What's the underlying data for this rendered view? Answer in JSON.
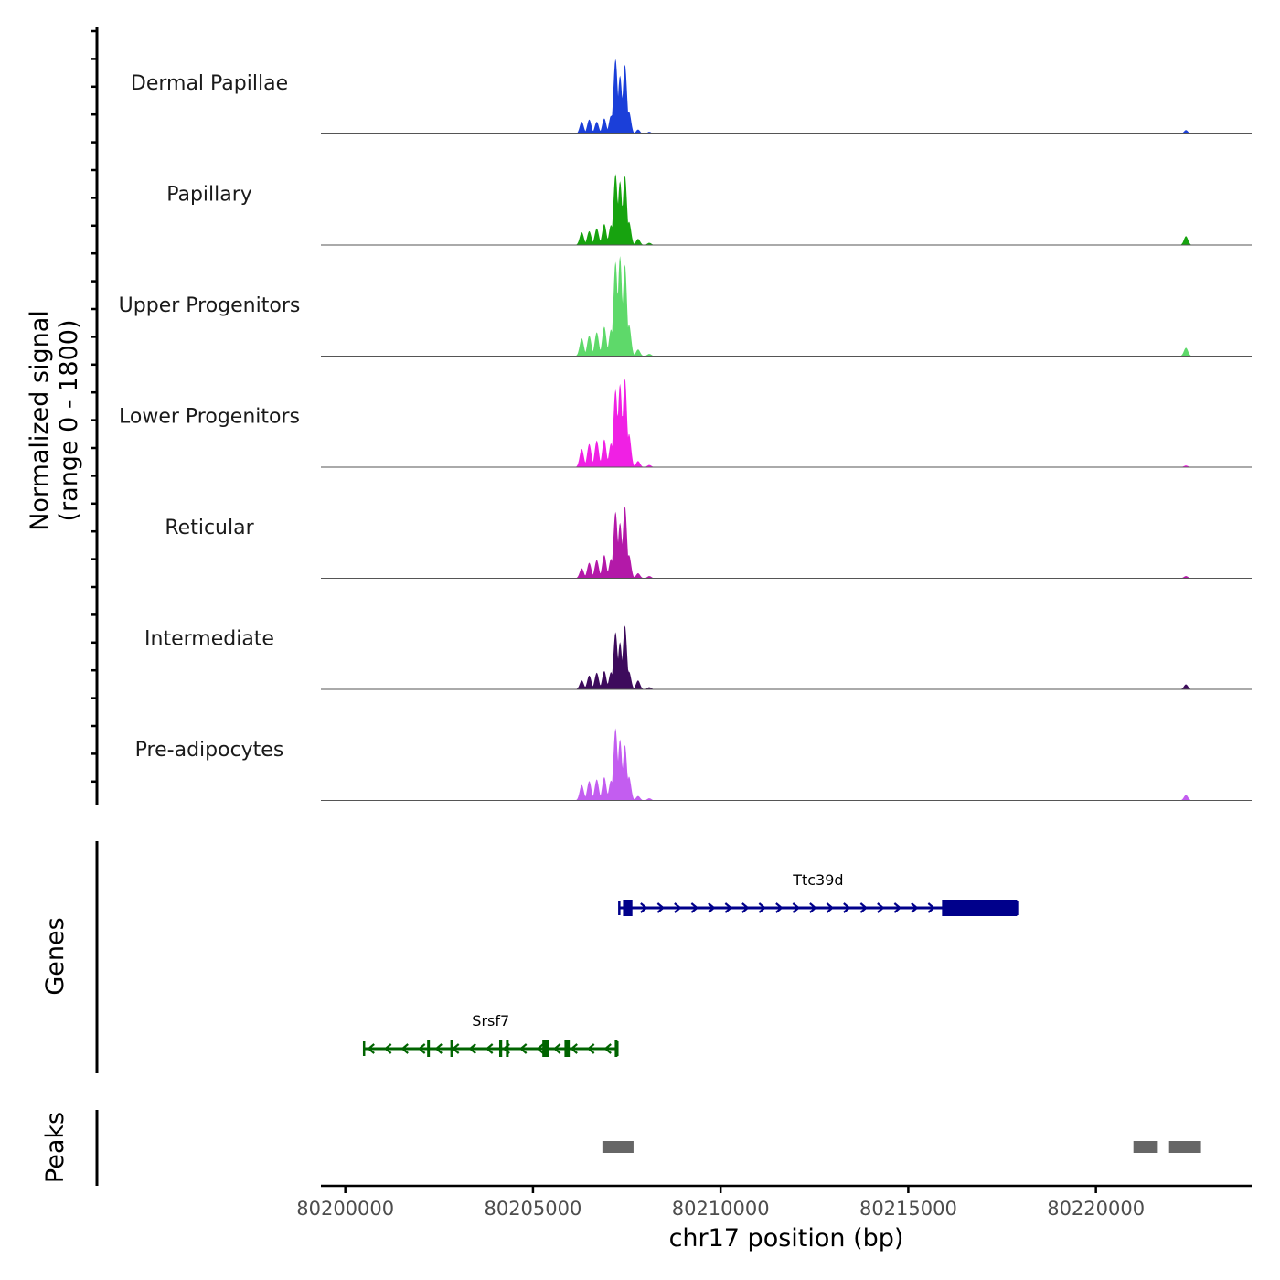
{
  "chart_data": {
    "type": "area",
    "title": "",
    "xlabel": "chr17 position (bp)",
    "ylabel_line1": "Normalized signal",
    "ylabel_line2": "(range 0 - 1800)",
    "yrange": [
      0,
      1800
    ],
    "xlim": [
      80199350,
      80224150
    ],
    "x_ticks": [
      80200000,
      80205000,
      80210000,
      80215000,
      80220000
    ],
    "x_tick_labels": [
      "80200000",
      "80205000",
      "80210000",
      "80215000",
      "80220000"
    ],
    "tracks": [
      {
        "name": "Dermal Papillae",
        "color": "#1B3FD9",
        "peaks": [
          [
            80206300,
            220
          ],
          [
            80206500,
            260
          ],
          [
            80206700,
            220
          ],
          [
            80206900,
            280
          ],
          [
            80207080,
            330
          ],
          [
            80207200,
            1350
          ],
          [
            80207320,
            1050
          ],
          [
            80207450,
            1250
          ],
          [
            80207560,
            400
          ],
          [
            80207800,
            80
          ],
          [
            80208100,
            40
          ],
          [
            80222400,
            70
          ]
        ]
      },
      {
        "name": "Papillary",
        "color": "#17A30F",
        "peaks": [
          [
            80206300,
            230
          ],
          [
            80206500,
            250
          ],
          [
            80206700,
            300
          ],
          [
            80206900,
            380
          ],
          [
            80207080,
            360
          ],
          [
            80207200,
            1280
          ],
          [
            80207320,
            1150
          ],
          [
            80207450,
            1250
          ],
          [
            80207560,
            420
          ],
          [
            80207800,
            110
          ],
          [
            80208100,
            40
          ],
          [
            80222400,
            160
          ]
        ]
      },
      {
        "name": "Upper Progenitors",
        "color": "#5ED96A",
        "peaks": [
          [
            80206300,
            320
          ],
          [
            80206500,
            370
          ],
          [
            80206700,
            430
          ],
          [
            80206900,
            530
          ],
          [
            80207080,
            480
          ],
          [
            80207200,
            1700
          ],
          [
            80207320,
            1800
          ],
          [
            80207450,
            1650
          ],
          [
            80207560,
            570
          ],
          [
            80207800,
            120
          ],
          [
            80208100,
            40
          ],
          [
            80222400,
            150
          ]
        ]
      },
      {
        "name": "Lower Progenitors",
        "color": "#F020E4",
        "peaks": [
          [
            80206300,
            330
          ],
          [
            80206500,
            420
          ],
          [
            80206700,
            480
          ],
          [
            80206900,
            500
          ],
          [
            80207080,
            430
          ],
          [
            80207200,
            1400
          ],
          [
            80207320,
            1500
          ],
          [
            80207450,
            1600
          ],
          [
            80207560,
            600
          ],
          [
            80207800,
            110
          ],
          [
            80208100,
            40
          ],
          [
            80222400,
            30
          ]
        ]
      },
      {
        "name": "Reticular",
        "color": "#B319A8",
        "peaks": [
          [
            80206300,
            180
          ],
          [
            80206500,
            280
          ],
          [
            80206700,
            330
          ],
          [
            80206900,
            420
          ],
          [
            80207080,
            350
          ],
          [
            80207200,
            1200
          ],
          [
            80207320,
            1000
          ],
          [
            80207450,
            1300
          ],
          [
            80207560,
            420
          ],
          [
            80207800,
            90
          ],
          [
            80208100,
            40
          ],
          [
            80222400,
            40
          ]
        ]
      },
      {
        "name": "Intermediate",
        "color": "#3D0B5C",
        "peaks": [
          [
            80206300,
            160
          ],
          [
            80206500,
            250
          ],
          [
            80206700,
            300
          ],
          [
            80206900,
            330
          ],
          [
            80207080,
            310
          ],
          [
            80207200,
            1030
          ],
          [
            80207320,
            850
          ],
          [
            80207450,
            1150
          ],
          [
            80207560,
            320
          ],
          [
            80207800,
            160
          ],
          [
            80208100,
            40
          ],
          [
            80222400,
            90
          ]
        ]
      },
      {
        "name": "Pre-adipocytes",
        "color": "#C35DF0",
        "peaks": [
          [
            80206300,
            280
          ],
          [
            80206500,
            350
          ],
          [
            80206700,
            380
          ],
          [
            80206900,
            420
          ],
          [
            80207080,
            360
          ],
          [
            80207200,
            1300
          ],
          [
            80207320,
            1100
          ],
          [
            80207450,
            1000
          ],
          [
            80207560,
            430
          ],
          [
            80207800,
            80
          ],
          [
            80208100,
            40
          ],
          [
            80222400,
            100
          ]
        ]
      }
    ],
    "genes": [
      {
        "name": "Ttc39d",
        "strand": "+",
        "color": "#00008B",
        "start": 80207300,
        "end": 80217900,
        "exons": [
          [
            80207400,
            80207650
          ],
          [
            80215900,
            80217900
          ]
        ]
      },
      {
        "name": "Srsf7",
        "strand": "-",
        "color": "#006400",
        "start": 80200500,
        "end": 80207250,
        "exons": [
          [
            80202180,
            80202220
          ],
          [
            80202800,
            80202850
          ],
          [
            80204100,
            80204180
          ],
          [
            80204280,
            80204330
          ],
          [
            80205250,
            80205420
          ],
          [
            80205840,
            80205980
          ],
          [
            80207180,
            80207250
          ]
        ]
      }
    ],
    "peaks_regions": [
      [
        80206850,
        80207680
      ],
      [
        80221000,
        80221650
      ],
      [
        80221950,
        80222800
      ]
    ],
    "peaks_color": "#666666",
    "side_labels": {
      "genes": "Genes",
      "peaks": "Peaks"
    }
  }
}
